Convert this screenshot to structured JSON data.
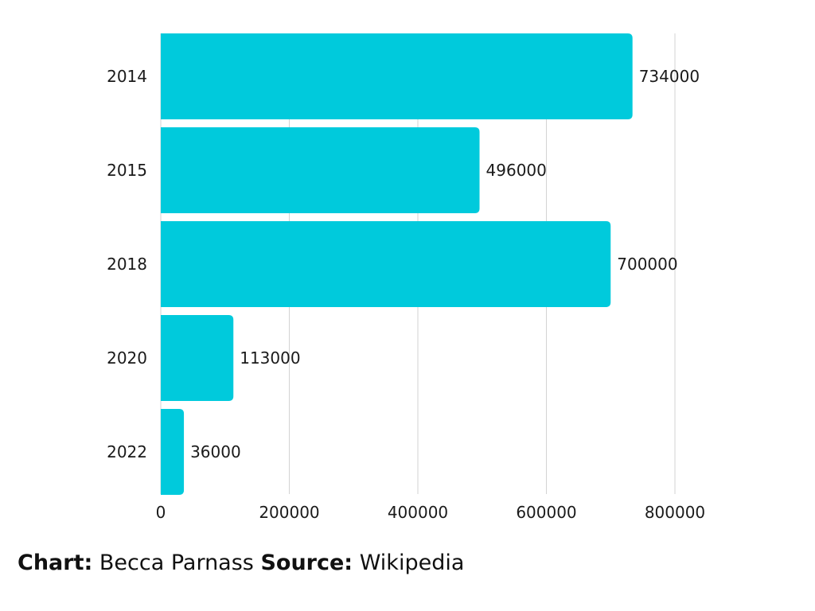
{
  "chart_data": {
    "type": "bar",
    "orientation": "horizontal",
    "categories": [
      "2014",
      "2015",
      "2018",
      "2020",
      "2022"
    ],
    "values": [
      734000,
      496000,
      700000,
      113000,
      36000
    ],
    "xlim": [
      0,
      800000
    ],
    "x_ticks": [
      0,
      200000,
      400000,
      600000,
      800000
    ],
    "x_tick_labels": [
      "0",
      "200000",
      "400000",
      "600000",
      "800000"
    ],
    "data_labels": [
      "734000",
      "496000",
      "700000",
      "113000",
      "36000"
    ],
    "grid": "vertical",
    "legend": "none",
    "title": "",
    "xlabel": "",
    "ylabel": ""
  },
  "colors": {
    "bar": "#00CADC",
    "grid": "#D3D3D3",
    "text": "#1a1a1a"
  },
  "footer": {
    "chart_label": "Chart:",
    "chart_value": "Becca Parnass",
    "source_label": "Source:",
    "source_value": "Wikipedia"
  }
}
